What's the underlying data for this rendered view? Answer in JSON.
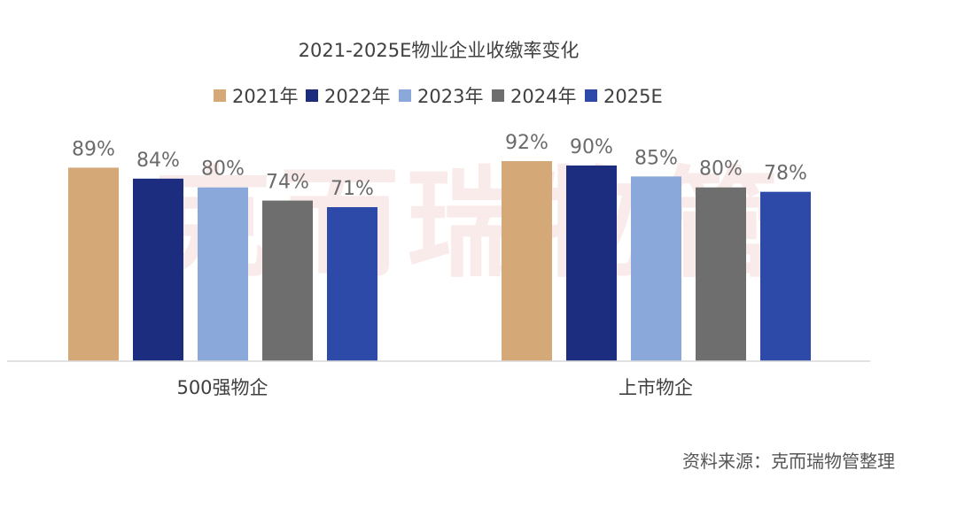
{
  "chart_data": {
    "type": "bar",
    "title": "2021-2025E物业企业收缴率变化",
    "categories": [
      "500强物企",
      "上市物企"
    ],
    "series": [
      {
        "name": "2021年",
        "color": "#d4a877",
        "values": [
          89,
          92
        ]
      },
      {
        "name": "2022年",
        "color": "#1c2d7f",
        "values": [
          84,
          90
        ]
      },
      {
        "name": "2023年",
        "color": "#8aa9da",
        "values": [
          80,
          85
        ]
      },
      {
        "name": "2024年",
        "color": "#6e6e6e",
        "values": [
          74,
          80
        ]
      },
      {
        "name": "2025E",
        "color": "#2e4aa8",
        "values": [
          71,
          78
        ]
      }
    ],
    "value_suffix": "%",
    "ylim": [
      0,
      100
    ],
    "xlabel": "",
    "ylabel": "",
    "legend_position": "top",
    "grid": false
  },
  "watermark": "克而瑞物管",
  "source_note": "资料来源：克而瑞物管整理"
}
